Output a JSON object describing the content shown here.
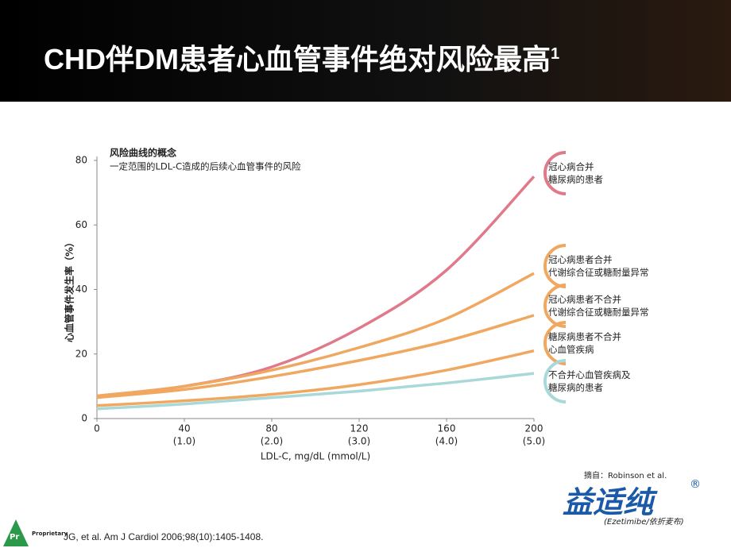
{
  "title": "CHD伴DM患者心血管事件绝对风险最高",
  "title_sup": "1",
  "chart_data": {
    "type": "line",
    "title": "风险曲线的概念",
    "subtitle": "一定范围的LDL-C造成的后续心血管事件的风险",
    "x_label": "LDL-C, mg/dL (mmol/L)",
    "y_label": "心血管事件发生率（%）",
    "x": [
      0,
      40,
      80,
      120,
      160,
      200
    ],
    "xlim": [
      0,
      200
    ],
    "xticks": [
      0,
      40,
      80,
      120,
      160,
      200
    ],
    "xtick_sublabels": [
      {
        "value": 40,
        "label": "(1.0)"
      },
      {
        "value": 80,
        "label": "(2.0)"
      },
      {
        "value": 120,
        "label": "(3.0)"
      },
      {
        "value": 160,
        "label": "(4.0)"
      },
      {
        "value": 200,
        "label": "(5.0)"
      }
    ],
    "ylim": [
      0,
      80
    ],
    "yticks": [
      0,
      20,
      40,
      60,
      80
    ],
    "series": [
      {
        "name": "冠心病合并\n糖尿病的患者",
        "color": "#e07a8a",
        "values": [
          7,
          10,
          16,
          28,
          46,
          75
        ]
      },
      {
        "name": "冠心病患者合并\n代谢综合征或糖耐量异常",
        "color": "#f0a860",
        "values": [
          7,
          10,
          15,
          22,
          31,
          45
        ]
      },
      {
        "name": "冠心病患者不合并\n代谢综合征或糖耐量异常",
        "color": "#f0a860",
        "values": [
          6.5,
          9,
          13,
          18,
          24,
          32
        ]
      },
      {
        "name": "糖尿病患者不合并\n心血管疾病",
        "color": "#f0a860",
        "values": [
          4,
          5.5,
          7.5,
          10.5,
          15,
          21
        ]
      },
      {
        "name": "不合并心血管疾病及\n糖尿病的患者",
        "color": "#a8d8d8",
        "values": [
          3,
          4.5,
          6.5,
          8.5,
          11,
          14
        ]
      }
    ]
  },
  "source": "摘自：Robinson et al.",
  "brand": "益适纯",
  "brand_mark": "®",
  "brand_sub": "(Ezetimibe/依折麦布)",
  "logo": "Pr",
  "logo_sub": "Proprietary",
  "citation": "JG, et al. Am J Cardiol 2006;98(10):1405-1408."
}
